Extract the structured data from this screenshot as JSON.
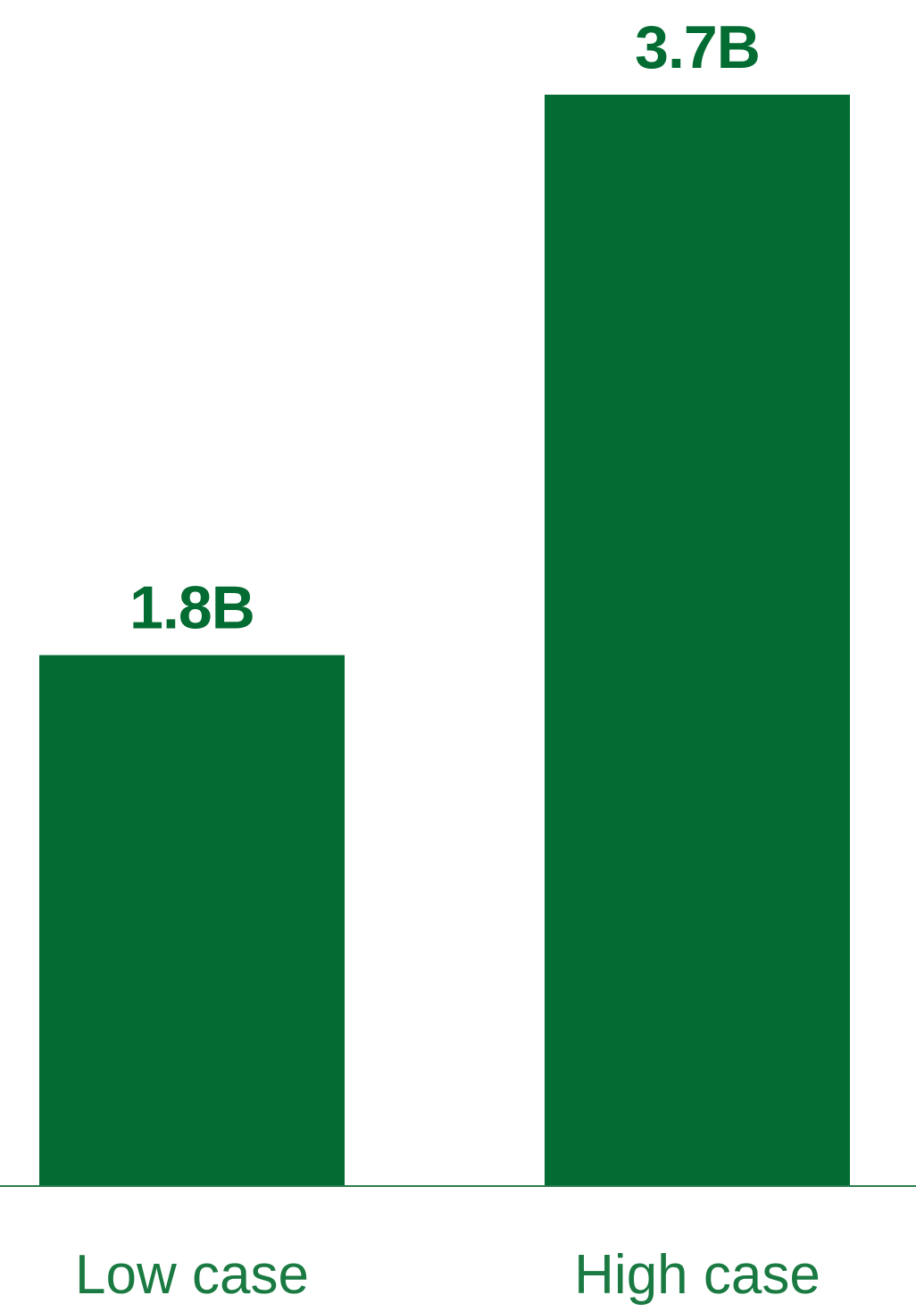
{
  "chart_data": {
    "type": "bar",
    "categories": [
      "Low case",
      "High case"
    ],
    "values": [
      1.8,
      3.7
    ],
    "value_labels": [
      "1.8B",
      "3.7B"
    ],
    "title": "",
    "xlabel": "",
    "ylabel": "",
    "ylim": [
      0,
      3.7
    ],
    "grid": false,
    "legend": "none",
    "colors": {
      "bar": "#036c32",
      "value_label": "#036c32",
      "category_label": "#1a7a42",
      "baseline": "#2e7d4f"
    }
  }
}
